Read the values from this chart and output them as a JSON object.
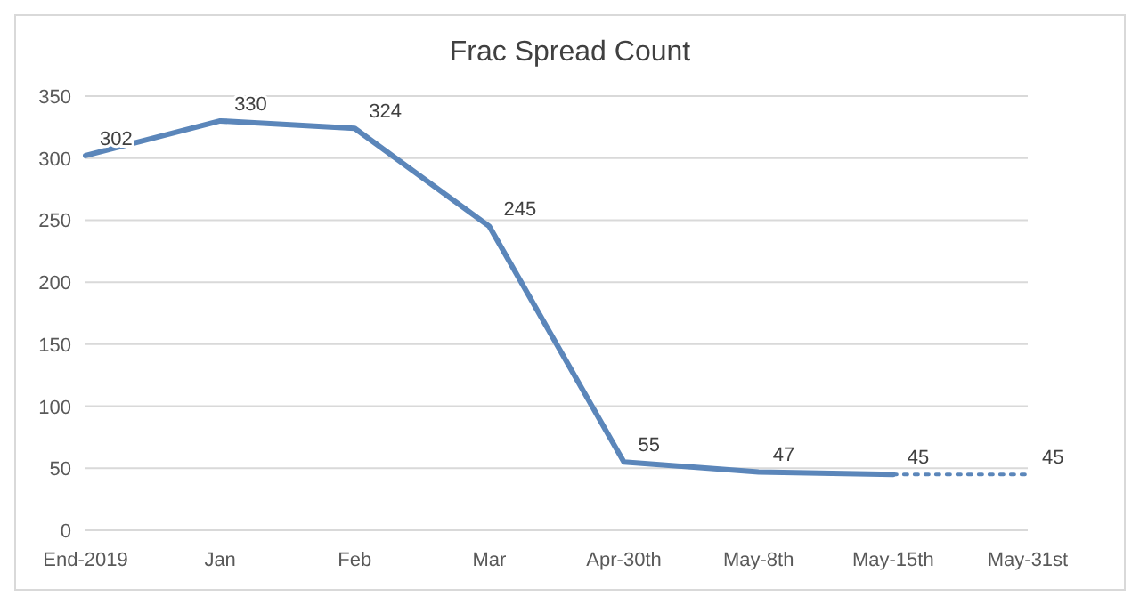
{
  "chart_data": {
    "type": "line",
    "title": "Frac Spread Count",
    "categories": [
      "End-2019",
      "Jan",
      "Feb",
      "Mar",
      "Apr-30th",
      "May-8th",
      "May-15th",
      "May-31st"
    ],
    "series": [
      {
        "color": "#5b86ba",
        "line_style": "solid",
        "values": [
          302,
          330,
          324,
          245,
          55,
          47,
          45,
          null
        ],
        "value_labels": [
          "302",
          "330",
          "324",
          "245",
          "55",
          "47",
          "45",
          null
        ]
      },
      {
        "color": "#5b86ba",
        "line_style": "dotted",
        "values": [
          null,
          null,
          null,
          null,
          null,
          null,
          45,
          45
        ],
        "value_labels": [
          null,
          null,
          null,
          null,
          null,
          null,
          null,
          "45"
        ]
      }
    ],
    "ylim": [
      0,
      350
    ],
    "yticks": [
      0,
      50,
      100,
      150,
      200,
      250,
      300,
      350
    ],
    "grid": "y",
    "marker": "none"
  }
}
